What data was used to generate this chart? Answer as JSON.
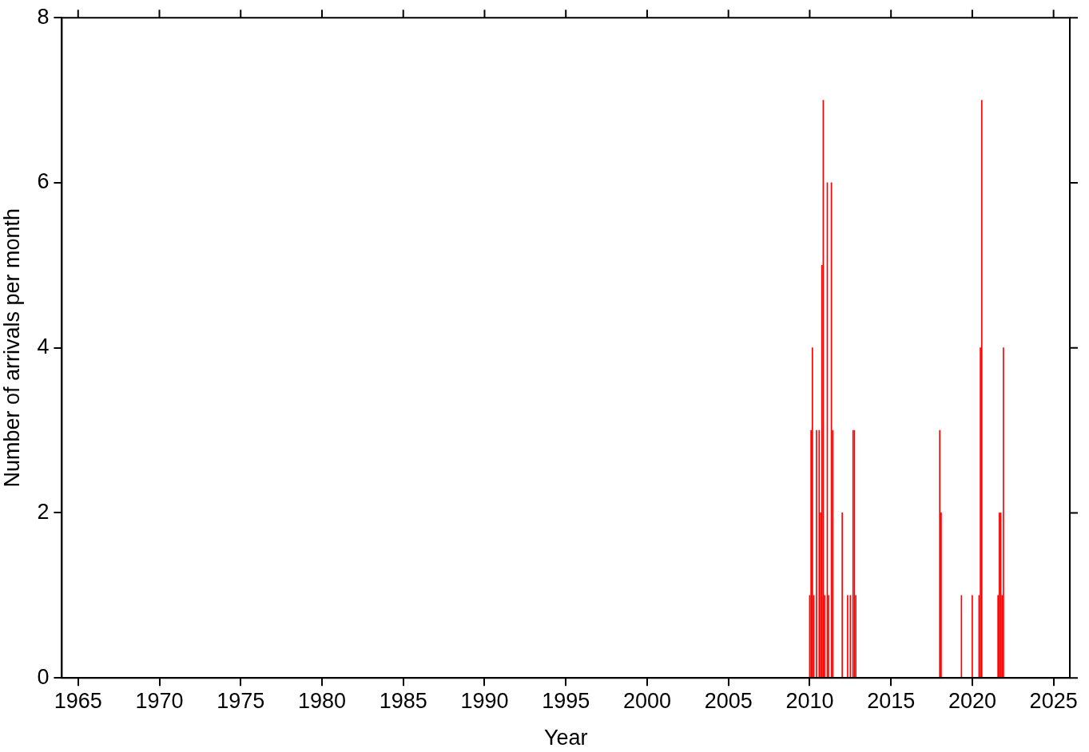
{
  "chart_data": {
    "type": "bar",
    "xlabel": "Year",
    "ylabel": "Number of arrivals per month",
    "x": [
      "2010-01",
      "2010-02",
      "2010-03",
      "2010-04",
      "2010-06",
      "2010-08",
      "2010-09",
      "2010-10",
      "2010-11",
      "2010-12",
      "2011-02",
      "2011-03",
      "2011-05",
      "2011-06",
      "2012-01",
      "2012-05",
      "2012-07",
      "2012-09",
      "2012-10",
      "2012-11",
      "2018-01",
      "2018-02",
      "2019-05",
      "2020-01",
      "2020-06",
      "2020-07",
      "2020-08",
      "2021-08",
      "2021-09",
      "2021-10",
      "2021-11",
      "2021-12"
    ],
    "series": [
      {
        "color": "#ff0000",
        "values": [
          1,
          3,
          4,
          1,
          3,
          3,
          2,
          5,
          7,
          1,
          6,
          1,
          6,
          3,
          2,
          1,
          1,
          3,
          3,
          1,
          3,
          2,
          1,
          1,
          1,
          4,
          7,
          1,
          2,
          2,
          1,
          4
        ]
      }
    ],
    "xlim": [
      "1964",
      "2026"
    ],
    "xticks": [
      "1965",
      "1970",
      "1975",
      "1980",
      "1985",
      "1990",
      "1995",
      "2000",
      "2005",
      "2010",
      "2015",
      "2020",
      "2025"
    ],
    "ylim": [
      0,
      8
    ],
    "yticks": [
      0,
      2,
      4,
      6,
      8
    ],
    "grid": false,
    "legend": false
  }
}
